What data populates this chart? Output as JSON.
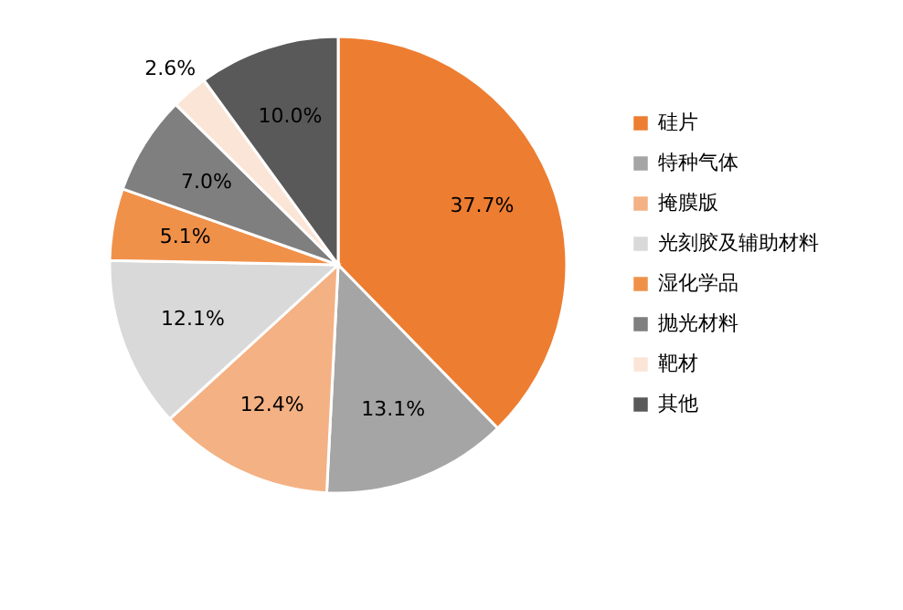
{
  "chart_data": {
    "type": "pie",
    "categories": [
      "硅片",
      "特种气体",
      "掩膜版",
      "光刻胶及辅助材料",
      "湿化学品",
      "抛光材料",
      "靶材",
      "其他"
    ],
    "values": [
      37.7,
      13.1,
      12.4,
      12.1,
      5.1,
      7.0,
      2.6,
      10.0
    ],
    "colors": [
      "#ed7d31",
      "#a5a5a5",
      "#f4b183",
      "#d9d9d9",
      "#f0914a",
      "#7f7f7f",
      "#fbe5d6",
      "#595959"
    ],
    "value_labels": [
      "37.7%",
      "13.1%",
      "12.4%",
      "12.1%",
      "5.1%",
      "7.0%",
      "2.6%",
      "10.0%"
    ],
    "legend": "right"
  }
}
